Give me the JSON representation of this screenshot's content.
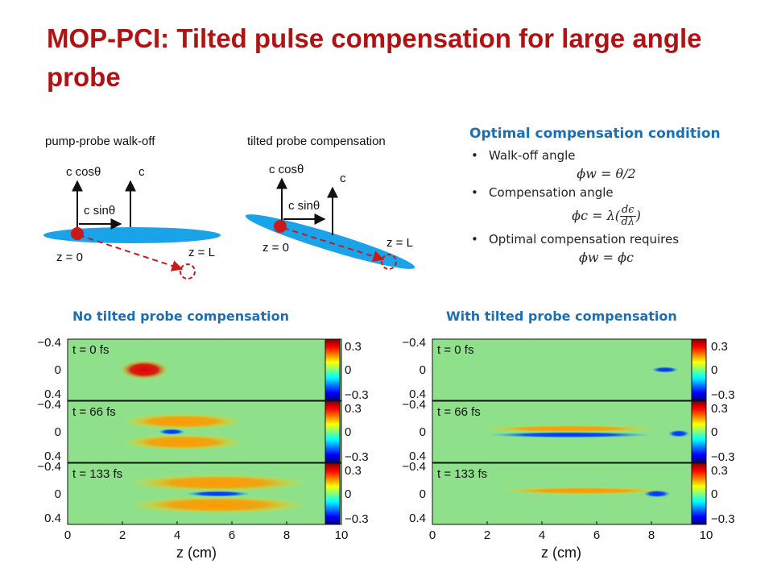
{
  "slide": {
    "title": "MOP-PCI: Tilted pulse compensation for large angle probe"
  },
  "diagram_left": {
    "title": "pump-probe walk-off",
    "label_c_cos": "c cosθ",
    "label_c": "c",
    "label_c_sin": "c sinθ",
    "label_z0": "z = 0",
    "label_zL": "z = L"
  },
  "diagram_right": {
    "title": "tilted probe compensation",
    "label_c_cos": "c cosθ",
    "label_c": "c",
    "label_c_sin": "c sinθ",
    "label_z0": "z = 0",
    "label_zL": "z = L"
  },
  "condition": {
    "heading": "Optimal compensation condition",
    "bullet1": "Walk-off angle",
    "eq1": "ϕw = θ/2",
    "bullet2": "Compensation angle",
    "eq2_lhs": "ϕc = λ(",
    "eq2_num": "dϵ",
    "eq2_den": "dλ",
    "eq2_rhs": ")",
    "bullet3": "Optimal compensation requires",
    "eq3": "ϕw = ϕc"
  },
  "captions": {
    "left": "No tilted probe compensation",
    "right": "With tilted probe compensation"
  },
  "colors": {
    "title": "#b01313",
    "heading": "#1a6fb5",
    "beam": "#1aa3e8",
    "dot": "#c81a1a"
  },
  "chart_data": [
    {
      "type": "heatmap",
      "title": "No tilted probe compensation",
      "xlabel": "z (cm)",
      "xlim": [
        0,
        10
      ],
      "x_ticks": [
        "0",
        "2",
        "4",
        "6",
        "8",
        "10"
      ],
      "panels": [
        {
          "label": "t = 0 fs",
          "y_ticks": [
            "−0.4",
            "0",
            "0.4"
          ]
        },
        {
          "label": "t = 66 fs",
          "y_ticks": [
            "−0.4",
            "0",
            "0.4"
          ]
        },
        {
          "label": "t = 133 fs",
          "y_ticks": [
            "−0.4",
            "0",
            "0.4"
          ]
        }
      ],
      "colorbar_ticks": [
        "0.3",
        "0",
        "−0.3"
      ],
      "colorbar_range": [
        -0.3,
        0.3
      ]
    },
    {
      "type": "heatmap",
      "title": "With tilted probe compensation",
      "xlabel": "z (cm)",
      "xlim": [
        0,
        10
      ],
      "x_ticks": [
        "0",
        "2",
        "4",
        "6",
        "8",
        "10"
      ],
      "panels": [
        {
          "label": "t = 0 fs",
          "y_ticks": [
            "−0.4",
            "0",
            "0.4"
          ]
        },
        {
          "label": "t = 66 fs",
          "y_ticks": [
            "−0.4",
            "0",
            "0.4"
          ]
        },
        {
          "label": "t = 133 fs",
          "y_ticks": [
            "−0.4",
            "0",
            "0.4"
          ]
        }
      ],
      "colorbar_ticks": [
        "0.3",
        "0",
        "−0.3"
      ],
      "colorbar_range": [
        -0.3,
        0.3
      ]
    }
  ]
}
